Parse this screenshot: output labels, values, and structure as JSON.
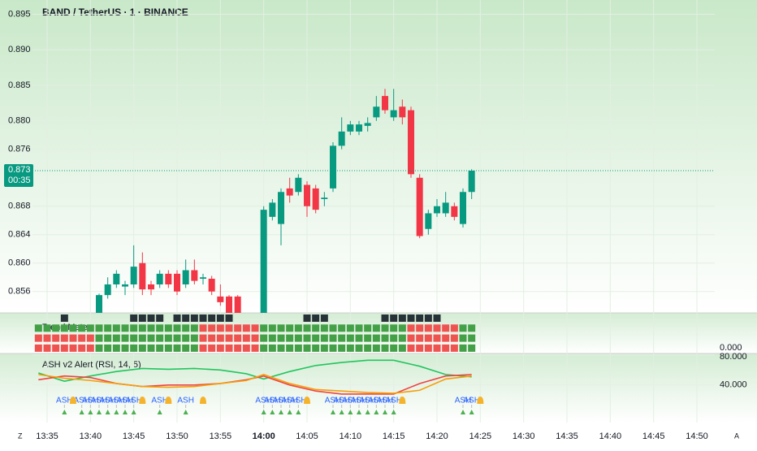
{
  "chart_data": [
    {
      "type": "candlestick",
      "title": "BAND / TetherUS · 1 · BINANCE",
      "ylim": [
        0.853,
        0.897
      ],
      "yticks": [
        0.895,
        {
          "value": 0.89,
          "label": "0.890"
        },
        0.885,
        {
          "value": 0.88,
          "label": "0.880"
        },
        0.876,
        0.868,
        0.864,
        {
          "value": 0.86,
          "label": "0.860"
        },
        0.856
      ],
      "xticks": [
        "13:35",
        "13:40",
        "13:45",
        "13:50",
        "13:55",
        "14:00",
        "14:05",
        "14:10",
        "14:15",
        "14:20",
        "14:25",
        "14:30",
        "14:35",
        "14:40",
        "14:45",
        "14:50"
      ],
      "corner_labels": [
        "Z",
        "A"
      ],
      "last_price": 0.873,
      "countdown": "00:35",
      "up_color": "#089981",
      "down_color": "#f23645",
      "t": [
        "13:41",
        "13:42",
        "13:43",
        "13:44",
        "13:45",
        "13:46",
        "13:47",
        "13:48",
        "13:49",
        "13:50",
        "13:51",
        "13:52",
        "13:53",
        "13:54",
        "13:55",
        "13:56",
        "13:57",
        "14:00",
        "14:01",
        "14:02",
        "14:03",
        "14:04",
        "14:05",
        "14:06",
        "14:07",
        "14:08",
        "14:09",
        "14:10",
        "14:11",
        "14:12",
        "14:13",
        "14:14",
        "14:15",
        "14:16",
        "14:17",
        "14:18",
        "14:19",
        "14:20",
        "14:21",
        "14:22",
        "14:23",
        "14:24"
      ],
      "open": [
        0.8525,
        0.8555,
        0.857,
        0.8567,
        0.857,
        0.86,
        0.857,
        0.857,
        0.8585,
        0.8585,
        0.857,
        0.859,
        0.8578,
        0.8578,
        0.8553,
        0.8553,
        0.8553,
        0.853,
        0.8665,
        0.8655,
        0.8705,
        0.87,
        0.871,
        0.8705,
        0.869,
        0.8705,
        0.8765,
        0.8785,
        0.8785,
        0.8793,
        0.8805,
        0.8835,
        0.8805,
        0.882,
        0.8815,
        0.872,
        0.8648,
        0.867,
        0.867,
        0.868,
        0.8655,
        0.87
      ],
      "high": [
        0.8557,
        0.858,
        0.859,
        0.8575,
        0.8625,
        0.8615,
        0.8575,
        0.859,
        0.859,
        0.859,
        0.8605,
        0.8605,
        0.8585,
        0.8582,
        0.857,
        0.8555,
        0.8555,
        0.868,
        0.869,
        0.8705,
        0.872,
        0.8725,
        0.8715,
        0.871,
        0.87,
        0.877,
        0.8805,
        0.88,
        0.88,
        0.8805,
        0.8835,
        0.8845,
        0.8845,
        0.883,
        0.882,
        0.8725,
        0.8675,
        0.869,
        0.87,
        0.8685,
        0.8705,
        0.8732
      ],
      "low": [
        0.852,
        0.855,
        0.8565,
        0.8555,
        0.8565,
        0.8555,
        0.8555,
        0.8565,
        0.8565,
        0.8555,
        0.8565,
        0.857,
        0.857,
        0.8555,
        0.854,
        0.8525,
        0.8525,
        0.8525,
        0.866,
        0.8625,
        0.8685,
        0.8695,
        0.8665,
        0.867,
        0.868,
        0.87,
        0.876,
        0.878,
        0.878,
        0.8785,
        0.88,
        0.881,
        0.88,
        0.8795,
        0.872,
        0.8635,
        0.864,
        0.8665,
        0.8665,
        0.866,
        0.865,
        0.869
      ],
      "close": [
        0.8555,
        0.857,
        0.8585,
        0.857,
        0.8595,
        0.8563,
        0.8563,
        0.8585,
        0.857,
        0.856,
        0.859,
        0.8575,
        0.858,
        0.856,
        0.8545,
        0.853,
        0.853,
        0.8675,
        0.8685,
        0.87,
        0.8695,
        0.872,
        0.868,
        0.8675,
        0.8692,
        0.8765,
        0.8785,
        0.8795,
        0.8795,
        0.8797,
        0.882,
        0.8815,
        0.8815,
        0.8805,
        0.8725,
        0.8638,
        0.867,
        0.868,
        0.8685,
        0.8665,
        0.87,
        0.873
      ]
    },
    {
      "type": "trend-meter",
      "title": "Trend Meter",
      "start": "13:34",
      "yticks": [
        {
          "value": 0,
          "label": "0.000"
        }
      ],
      "colors": {
        "k": "#263238",
        "g": "#43a047",
        "r": "#ef5350"
      },
      "rows": [
        "...k.......kkkk.kkkkkkk........kkk......kkkkkkk....",
        "gggggggggggggggggggrrrrrrrgggggggggggggggggrrrrrrgg",
        "rrrrrrrggggggggggggrrrrrrrgggggggggggggggggrrrrrrgg",
        "rrrrrrrggggggggggggrrrrrrrgggggggggggggggggrrrrrrgg"
      ]
    },
    {
      "type": "line",
      "title": "ASH v2 Alert (RSI, 14, 5)",
      "ylim": [
        -10,
        82
      ],
      "yticks": [
        {
          "value": 80,
          "label": "80.000"
        },
        {
          "value": 40,
          "label": "40.000"
        }
      ],
      "x": [
        "13:34",
        "13:37",
        "13:40",
        "13:43",
        "13:46",
        "13:49",
        "13:52",
        "13:55",
        "13:58",
        "14:00",
        "14:03",
        "14:06",
        "14:09",
        "14:12",
        "14:15",
        "14:18",
        "14:21",
        "14:24"
      ],
      "series": [
        {
          "color": "#22c55e",
          "values": [
            56,
            45,
            52,
            58,
            62,
            61,
            62,
            60,
            55,
            48,
            58,
            66,
            70,
            73,
            73,
            65,
            54,
            51
          ]
        },
        {
          "color": "#ef4444",
          "values": [
            47,
            52,
            50,
            42,
            38,
            40,
            40,
            42,
            47,
            52,
            40,
            32,
            28,
            28,
            28,
            42,
            52,
            54
          ]
        },
        {
          "color": "#f59e0b",
          "values": [
            54,
            49,
            46,
            42,
            38,
            37,
            38,
            42,
            46,
            54,
            42,
            34,
            32,
            30,
            29,
            33,
            48,
            52
          ]
        }
      ],
      "signal_color": "#2962ff",
      "arrow_color": "#4caf50",
      "bell_color": "#f5b32b",
      "signals": [
        {
          "t": "13:37",
          "label": "ASH"
        },
        {
          "t": "13:39",
          "label": "ASH"
        },
        {
          "t": "13:40",
          "label": "ASH"
        },
        {
          "t": "13:41",
          "label": "ASH"
        },
        {
          "t": "13:42",
          "label": "ASH"
        },
        {
          "t": "13:43",
          "label": "ASH"
        },
        {
          "t": "13:44",
          "label": "ASH"
        },
        {
          "t": "13:45",
          "label": "ASH"
        },
        {
          "t": "13:48",
          "label": "ASH"
        },
        {
          "t": "13:51",
          "label": "ASH"
        },
        {
          "t": "14:00",
          "label": "ASH"
        },
        {
          "t": "14:01",
          "label": "ASH"
        },
        {
          "t": "14:02",
          "label": "ASH"
        },
        {
          "t": "14:03",
          "label": "ASH"
        },
        {
          "t": "14:04",
          "label": "ASH"
        },
        {
          "t": "14:08",
          "label": "ASH"
        },
        {
          "t": "14:09",
          "label": "ASH"
        },
        {
          "t": "14:10",
          "label": "ASH"
        },
        {
          "t": "14:11",
          "label": "ASH"
        },
        {
          "t": "14:12",
          "label": "ASH"
        },
        {
          "t": "14:13",
          "label": "ASH"
        },
        {
          "t": "14:14",
          "label": "ASH"
        },
        {
          "t": "14:15",
          "label": "ASH"
        },
        {
          "t": "14:23",
          "label": "ASH"
        },
        {
          "t": "14:24",
          "label": "ASH"
        }
      ],
      "alerts": [
        "13:38",
        "13:46",
        "13:49",
        "13:53",
        "14:05",
        "14:16",
        "14:25"
      ]
    }
  ]
}
